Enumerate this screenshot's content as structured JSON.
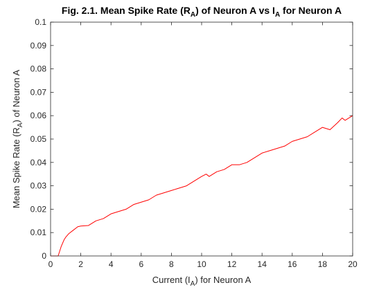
{
  "chart_data": {
    "type": "line",
    "title": {
      "prefix": "Fig. 2.1. Mean Spike Rate (R",
      "sub1": "A",
      "middle": ") of Neuron A vs I",
      "sub2": "A",
      "suffix": " for Neuron A"
    },
    "xlabel": {
      "prefix": "Current (I",
      "sub": "A",
      "suffix": ") for Neuron A"
    },
    "ylabel": {
      "prefix": "Mean Spike Rate (R",
      "sub": "A",
      "suffix": ") of Neuron A"
    },
    "xlim": [
      0,
      20
    ],
    "ylim": [
      0,
      0.1
    ],
    "xticks": [
      0,
      2,
      4,
      6,
      8,
      10,
      12,
      14,
      16,
      18,
      20
    ],
    "yticks": [
      0,
      0.01,
      0.02,
      0.03,
      0.04,
      0.05,
      0.06,
      0.07,
      0.08,
      0.09,
      0.1
    ],
    "xtick_labels": [
      "0",
      "2",
      "4",
      "6",
      "8",
      "10",
      "12",
      "14",
      "16",
      "18",
      "20"
    ],
    "ytick_labels": [
      "0",
      "0.01",
      "0.02",
      "0.03",
      "0.04",
      "0.05",
      "0.06",
      "0.07",
      "0.08",
      "0.09",
      "0.1"
    ],
    "grid": false,
    "line_color": "#ff0000",
    "series": [
      {
        "x": [
          0,
          0.5,
          0.7,
          0.9,
          1.0,
          1.2,
          1.5,
          1.8,
          2.0,
          2.5,
          3.0,
          3.5,
          4.0,
          4.5,
          5.0,
          5.5,
          6.0,
          6.5,
          7.0,
          7.5,
          8.0,
          8.5,
          9.0,
          9.5,
          10.0,
          10.3,
          10.5,
          11.0,
          11.5,
          12.0,
          12.5,
          13.0,
          13.5,
          14.0,
          14.5,
          15.0,
          15.5,
          16.0,
          16.5,
          17.0,
          17.5,
          18.0,
          18.5,
          19.0,
          19.3,
          19.5,
          20.0
        ],
        "y": [
          0,
          0,
          0.004,
          0.007,
          0.008,
          0.0095,
          0.011,
          0.0125,
          0.0128,
          0.013,
          0.015,
          0.016,
          0.018,
          0.019,
          0.02,
          0.022,
          0.023,
          0.024,
          0.026,
          0.027,
          0.028,
          0.029,
          0.03,
          0.032,
          0.034,
          0.035,
          0.034,
          0.036,
          0.037,
          0.039,
          0.039,
          0.04,
          0.042,
          0.044,
          0.045,
          0.046,
          0.047,
          0.049,
          0.05,
          0.051,
          0.053,
          0.055,
          0.054,
          0.057,
          0.059,
          0.058,
          0.06
        ]
      }
    ]
  }
}
